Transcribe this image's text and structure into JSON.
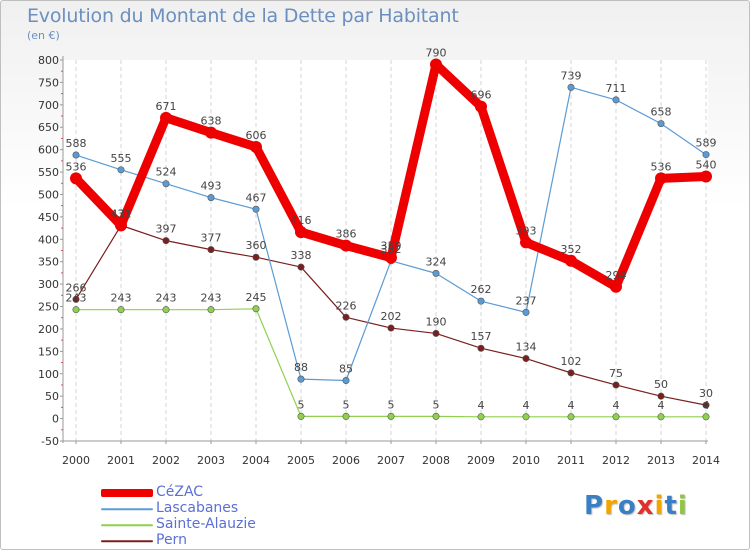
{
  "chart_data": {
    "type": "line",
    "title": "Evolution du Montant de la Dette par Habitant",
    "subtitle": "(en €)",
    "x": [
      "2000",
      "2001",
      "2002",
      "2003",
      "2004",
      "2005",
      "2006",
      "2007",
      "2008",
      "2009",
      "2010",
      "2011",
      "2012",
      "2013",
      "2014"
    ],
    "ylim": [
      -50,
      800
    ],
    "yticks": [
      -50,
      0,
      50,
      100,
      150,
      200,
      250,
      300,
      350,
      400,
      450,
      500,
      550,
      600,
      650,
      700,
      750,
      800
    ],
    "grid": "vertical",
    "legend_position": "bottom-left",
    "series": [
      {
        "name": "CéZAC",
        "color": "#ee0000",
        "values": [
          536,
          431,
          671,
          638,
          606,
          416,
          386,
          359,
          790,
          696,
          393,
          352,
          294,
          536,
          540
        ],
        "value_labels": [
          "536",
          "431",
          "671",
          "638",
          "606",
          "416",
          "386",
          "359",
          "790",
          "696",
          "393",
          "352",
          "294",
          "536",
          "540"
        ]
      },
      {
        "name": "Lascabanes",
        "color": "#5b9bd5",
        "values": [
          588,
          555,
          524,
          493,
          467,
          88,
          85,
          352,
          324,
          262,
          237,
          739,
          711,
          658,
          589
        ],
        "value_labels": [
          "588",
          "555",
          "524",
          "493",
          "467",
          "88",
          "85",
          "352",
          "324",
          "262",
          "237",
          "739",
          "711",
          "658",
          "589"
        ]
      },
      {
        "name": "Sainte-Alauzie",
        "color": "#8fd14f",
        "values": [
          243,
          243,
          243,
          243,
          245,
          5,
          5,
          5,
          5,
          4,
          4,
          4,
          4,
          4,
          4
        ],
        "value_labels": [
          "243",
          "243",
          "243",
          "243",
          "245",
          "5",
          "5",
          "5",
          "5",
          "4",
          "4",
          "4",
          "4",
          "4",
          "4"
        ]
      },
      {
        "name": "Pern",
        "color": "#7a1f1f",
        "values": [
          266,
          431,
          397,
          377,
          360,
          338,
          226,
          202,
          190,
          157,
          134,
          102,
          75,
          50,
          30
        ],
        "value_labels": [
          "266",
          "431",
          "397",
          "377",
          "360",
          "338",
          "226",
          "202",
          "190",
          "157",
          "134",
          "102",
          "75",
          "50",
          "30"
        ]
      }
    ]
  },
  "brand": {
    "letters": [
      "P",
      "r",
      "o",
      "x",
      "i",
      "t",
      "i"
    ],
    "colors": [
      "#3a7fc4",
      "#f0a500",
      "#3a7fc4",
      "#e0302a",
      "#f0a500",
      "#3a7fc4",
      "#8fc63f"
    ]
  }
}
